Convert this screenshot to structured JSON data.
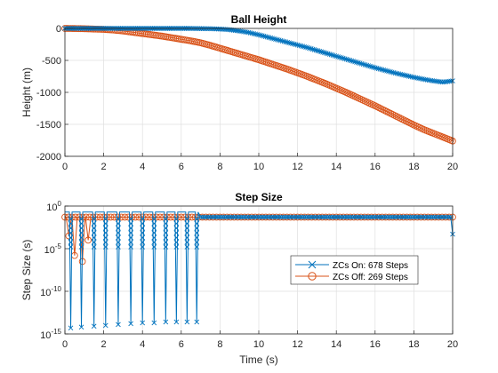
{
  "colors": {
    "zc_on": "#0072BD",
    "zc_off": "#D95319",
    "axes": "#262626",
    "grid": "#dfdfdf"
  },
  "chart_data": [
    {
      "type": "line",
      "title": "Ball Height",
      "xlabel": "",
      "ylabel": "Height (m)",
      "xlim": [
        0,
        20
      ],
      "ylim": [
        -2000,
        0
      ],
      "xticks": [
        "0",
        "2",
        "4",
        "6",
        "8",
        "10",
        "12",
        "14",
        "16",
        "18",
        "20"
      ],
      "yticks": [
        "0",
        "-500",
        "-1000",
        "-1500",
        "-2000"
      ],
      "grid": true,
      "series": [
        {
          "name": "ZCs On: 678 Steps",
          "marker": "x",
          "x": [
            0,
            0.5,
            1,
            1.5,
            2,
            2.5,
            3,
            3.5,
            4,
            4.5,
            5,
            5.5,
            6,
            6.5,
            7,
            7.5,
            8,
            8.5,
            9,
            9.5,
            10,
            10.5,
            11,
            11.5,
            12,
            12.5,
            13,
            13.5,
            14,
            14.5,
            15,
            15.5,
            16,
            16.5,
            17,
            17.5,
            18,
            18.5,
            19,
            19.5,
            20
          ],
          "y": [
            0,
            0,
            0,
            0,
            0,
            0,
            0,
            0,
            0,
            0,
            0,
            0,
            0,
            0,
            -3,
            -5,
            -10,
            -20,
            -40,
            -65,
            -100,
            -140,
            -180,
            -220,
            -260,
            -300,
            -345,
            -390,
            -435,
            -480,
            -525,
            -570,
            -615,
            -655,
            -695,
            -730,
            -765,
            -795,
            -820,
            -840,
            -820
          ]
        },
        {
          "name": "ZCs Off: 269 Steps",
          "marker": "o",
          "x": [
            0,
            0.5,
            1,
            1.5,
            2,
            2.5,
            3,
            3.5,
            4,
            4.5,
            5,
            5.5,
            6,
            6.5,
            7,
            7.5,
            8,
            8.5,
            9,
            9.5,
            10,
            10.5,
            11,
            11.5,
            12,
            12.5,
            13,
            13.5,
            14,
            14.5,
            15,
            15.5,
            16,
            16.5,
            17,
            17.5,
            18,
            18.5,
            19,
            19.5,
            20
          ],
          "y": [
            0,
            -2,
            -5,
            -10,
            -15,
            -25,
            -40,
            -60,
            -80,
            -100,
            -120,
            -145,
            -170,
            -195,
            -225,
            -265,
            -310,
            -355,
            -400,
            -445,
            -490,
            -540,
            -590,
            -640,
            -695,
            -750,
            -810,
            -870,
            -935,
            -1000,
            -1070,
            -1140,
            -1210,
            -1285,
            -1360,
            -1435,
            -1510,
            -1580,
            -1640,
            -1700,
            -1760
          ]
        }
      ]
    },
    {
      "type": "line",
      "title": "Step Size",
      "xlabel": "Time (s)",
      "ylabel": "Step Size (s)",
      "xlim": [
        0,
        20
      ],
      "ylim_exponent": [
        -15,
        0
      ],
      "yscale": "log",
      "xticks": [
        "0",
        "2",
        "4",
        "6",
        "8",
        "10",
        "12",
        "14",
        "16",
        "18",
        "20"
      ],
      "yticks": [
        {
          "base": "10",
          "exp": "0",
          "value": 0
        },
        {
          "base": "10",
          "exp": "-5",
          "value": -5
        },
        {
          "base": "10",
          "exp": "-10",
          "value": -10
        },
        {
          "base": "10",
          "exp": "-15",
          "value": -15
        }
      ],
      "grid": true,
      "legend_position": "middle-right",
      "series": [
        {
          "name": "ZCs On: 678 Steps",
          "marker": "x",
          "spike_times": [
            0.3,
            0.85,
            1.5,
            2.1,
            2.75,
            3.4,
            4.0,
            4.6,
            5.2,
            5.75,
            6.3,
            6.8
          ],
          "spike_min_log10": [
            -14.3,
            -14.2,
            -14.1,
            -14.0,
            -13.9,
            -13.8,
            -13.7,
            -13.7,
            -13.6,
            -13.6,
            -13.6,
            -13.6
          ],
          "baseline_log10": -0.7,
          "plateau_log10": -1.3,
          "end_x": 20,
          "end_log10": -3.3
        },
        {
          "name": "ZCs Off: 269 Steps",
          "marker": "o",
          "baseline_log10": -1.3,
          "dips_x": [
            0.2,
            0.5,
            0.9,
            1.2
          ],
          "dips_log10": [
            -3.5,
            -5.8,
            -6.5,
            -4.0
          ],
          "end_x": 20,
          "end_log10": -1.3
        }
      ]
    }
  ]
}
